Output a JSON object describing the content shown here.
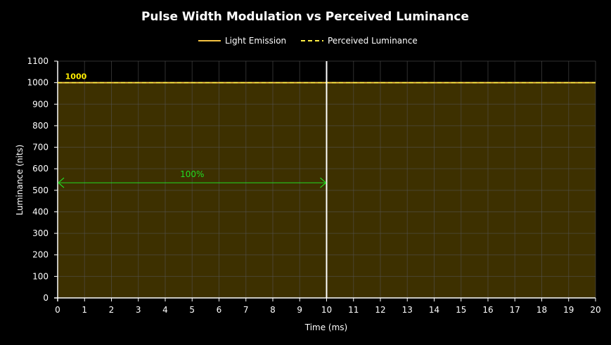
{
  "chart_data": {
    "type": "area",
    "title": "Pulse Width Modulation  vs Perceived Luminance",
    "xlabel": "Time (ms)",
    "ylabel": "Luminance (nits)",
    "xlim": [
      0,
      20
    ],
    "ylim": [
      0,
      1100
    ],
    "x_ticks": [
      0,
      1,
      2,
      3,
      4,
      5,
      6,
      7,
      8,
      9,
      10,
      11,
      12,
      13,
      14,
      15,
      16,
      17,
      18,
      19,
      20
    ],
    "y_ticks": [
      0,
      100,
      200,
      300,
      400,
      500,
      600,
      700,
      800,
      900,
      1000,
      1100
    ],
    "grid": true,
    "legend_position": "top-center",
    "series": [
      {
        "name": "Light Emission",
        "style": "solid",
        "color": "#f5c342",
        "x": [
          0,
          20
        ],
        "y": [
          1000,
          1000
        ]
      },
      {
        "name": "Perceived Luminance",
        "style": "dashed",
        "color": "#ffee44",
        "x": [
          0,
          20
        ],
        "y": [
          1000,
          1000
        ]
      }
    ],
    "fill_color": "#3d3000",
    "annotations": [
      {
        "type": "value-label",
        "text": "1000",
        "x": 0.2,
        "y": 1030,
        "color": "#ffee00"
      },
      {
        "type": "vertical-line",
        "x": 10,
        "color": "#ffffff"
      },
      {
        "type": "double-arrow",
        "text": "100%",
        "x_start": 0,
        "x_end": 10,
        "y": 535,
        "color": "#22dd22"
      }
    ]
  }
}
